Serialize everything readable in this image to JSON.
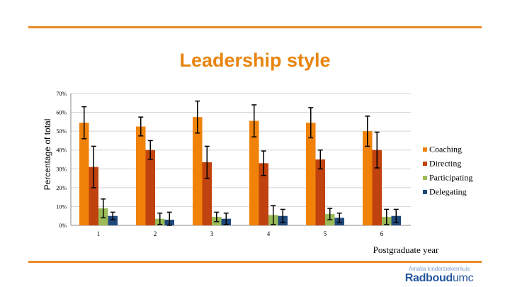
{
  "colors": {
    "accent": "#E98A2A",
    "title": "#E8850E",
    "coaching": "#F0820A",
    "directing": "#C0420E",
    "participating": "#9BBB59",
    "delegating": "#1F497D",
    "grid": "#d4d4d4",
    "axis": "#888888"
  },
  "slide": {
    "title": "Leadership style"
  },
  "logo": {
    "subtitle": "Amalia kinderziekenhuis",
    "main_bold": "Radboud",
    "main_light": "umc"
  },
  "chart_data": {
    "type": "bar",
    "title": "",
    "xlabel": "Postgraduate year",
    "ylabel": "Percentage of total",
    "categories": [
      "1",
      "2",
      "3",
      "4",
      "5",
      "6"
    ],
    "ylim": [
      0,
      70
    ],
    "yticks": [
      "0%",
      "10%",
      "20%",
      "30%",
      "40%",
      "50%",
      "60%",
      "70%"
    ],
    "ytick_values": [
      0,
      10,
      20,
      30,
      40,
      50,
      60,
      70
    ],
    "grid": true,
    "legend_position": "right",
    "series": [
      {
        "name": "Coaching",
        "color": "#F0820A",
        "values": [
          54.5,
          52.5,
          57.5,
          55.5,
          54.5,
          50
        ],
        "error": [
          8.5,
          5,
          8.5,
          8.5,
          8,
          8
        ]
      },
      {
        "name": "Directing",
        "color": "#C0420E",
        "values": [
          31,
          40,
          33.5,
          33,
          35,
          40
        ],
        "error": [
          11,
          5,
          8.5,
          6.5,
          5,
          9.5
        ]
      },
      {
        "name": "Participating",
        "color": "#9BBB59",
        "values": [
          9,
          3.5,
          4.5,
          5.5,
          6,
          4.5
        ],
        "error": [
          5,
          3,
          2.5,
          5,
          3,
          4
        ]
      },
      {
        "name": "Delegating",
        "color": "#1F497D",
        "values": [
          5,
          3,
          3.5,
          5,
          4,
          5
        ],
        "error": [
          2,
          4,
          3,
          3.5,
          2.5,
          3.5
        ]
      }
    ]
  }
}
